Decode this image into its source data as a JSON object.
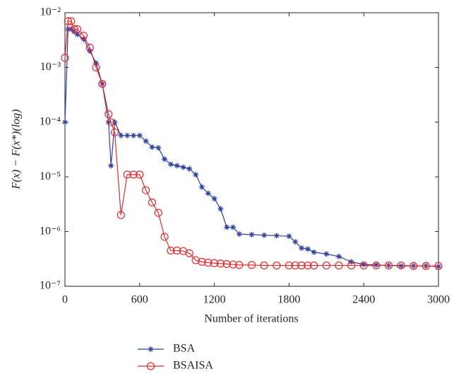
{
  "chart_data": {
    "type": "line",
    "log_y": true,
    "legend": "below",
    "xlabel": "Number of iterations",
    "ylabel": "F(x) − F(x*)(log)",
    "xlim": [
      0,
      3000
    ],
    "xticks": [
      0,
      600,
      1200,
      1800,
      2400,
      3000
    ],
    "ylim": [
      1e-07,
      0.01
    ],
    "yticks": [
      {
        "value": 1e-07,
        "label": "10⁻⁷"
      },
      {
        "value": 1e-06,
        "label": "10⁻⁶"
      },
      {
        "value": 1e-05,
        "label": "10⁻⁵"
      },
      {
        "value": 0.0001,
        "label": "10⁻⁴"
      },
      {
        "value": 0.001,
        "label": "10⁻³"
      },
      {
        "value": 0.01,
        "label": "10⁻²"
      }
    ],
    "x": [
      0,
      25,
      50,
      75,
      100,
      150,
      200,
      250,
      300,
      350,
      370,
      400,
      450,
      500,
      550,
      600,
      650,
      700,
      750,
      800,
      850,
      900,
      950,
      1000,
      1050,
      1100,
      1150,
      1200,
      1250,
      1300,
      1350,
      1400,
      1500,
      1600,
      1700,
      1800,
      1850,
      1900,
      1950,
      2000,
      2100,
      2200,
      2300,
      2400,
      2500,
      2600,
      2700,
      2800,
      2900,
      3000
    ],
    "series": [
      {
        "name": "BSA",
        "color": "#2b3f9e",
        "marker": "star",
        "values": [
          0.0001,
          0.005,
          0.005,
          0.0045,
          0.004,
          0.0033,
          0.002,
          0.0012,
          0.0005,
          0.0001,
          1.6e-05,
          0.0001,
          5.7e-05,
          5.7e-05,
          5.7e-05,
          5.7e-05,
          4.5e-05,
          3.5e-05,
          3.4e-05,
          2.1e-05,
          1.7e-05,
          1.6e-05,
          1.5e-05,
          1.4e-05,
          1.1e-05,
          6.5e-06,
          5e-06,
          4e-06,
          2.6e-06,
          1.2e-06,
          1.2e-06,
          9e-07,
          8.8e-07,
          8.6e-07,
          8.4e-07,
          8.2e-07,
          6.5e-07,
          5e-07,
          4.8e-07,
          4.2e-07,
          3.9e-07,
          3.5e-07,
          2.8e-07,
          2.5e-07,
          2.45e-07,
          2.4e-07,
          2.35e-07,
          2.35e-07,
          2.35e-07,
          2.3e-07
        ]
      },
      {
        "name": "BSAISA",
        "color": "#e8272b",
        "marker": "circle",
        "values": [
          0.0015,
          0.007,
          0.007,
          0.005,
          0.005,
          0.0038,
          0.0023,
          0.001,
          0.0005,
          0.00014,
          0.0001,
          6.5e-05,
          2e-06,
          1.1e-05,
          1.1e-05,
          1.1e-05,
          5.7e-06,
          3.4e-06,
          2.2e-06,
          8e-07,
          4.5e-07,
          4.5e-07,
          4.4e-07,
          4e-07,
          3e-07,
          2.8e-07,
          2.7e-07,
          2.65e-07,
          2.6e-07,
          2.55e-07,
          2.5e-07,
          2.45e-07,
          2.45e-07,
          2.4e-07,
          2.4e-07,
          2.4e-07,
          2.4e-07,
          2.4e-07,
          2.4e-07,
          2.4e-07,
          2.4e-07,
          2.4e-07,
          2.4e-07,
          2.4e-07,
          2.4e-07,
          2.4e-07,
          2.4e-07,
          2.35e-07,
          2.35e-07,
          2.35e-07
        ]
      }
    ]
  }
}
